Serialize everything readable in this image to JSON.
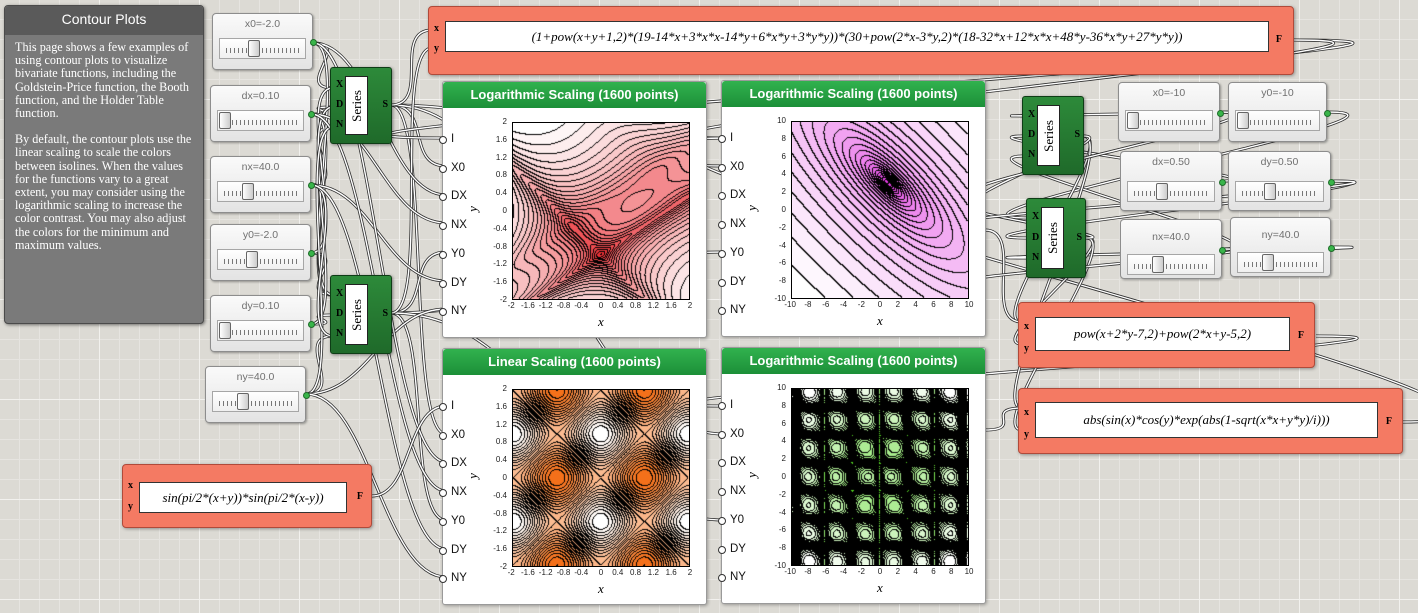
{
  "info": {
    "title": "Contour Plots",
    "paragraphs": [
      "This page shows a few examples of using contour plots to visualize bivariate functions, including the Goldstein-Price function, the Booth function, and the Holder Table function.",
      "By default, the contour plots use the linear scaling to scale the colors between isolines. When the values for the functions vary to a great extent, you may consider using the logarithmic scaling to increase the color contrast. You may also adjust the colors for the minimum and maximum values."
    ]
  },
  "sliders": {
    "x0_a": "x0=-2.0",
    "dx_a": "dx=0.10",
    "nx_a": "nx=40.0",
    "y0_a": "y0=-2.0",
    "dy_a": "dy=0.10",
    "ny_a": "ny=40.0",
    "x0_b": "x0=-10",
    "y0_b": "y0=-10",
    "dx_b": "dx=0.50",
    "dy_b": "dy=0.50",
    "nx_b": "nx=40.0",
    "ny_b": "ny=40.0",
    "levels": {
      "x0_a": 0.35,
      "dx_a": 0.0,
      "nx_a": 0.3,
      "y0_a": 0.35,
      "dy_a": 0.0,
      "ny_a": 0.3,
      "x0_b": 0.0,
      "y0_b": 0.0,
      "dx_b": 0.35,
      "dy_b": 0.35,
      "nx_b": 0.3,
      "ny_b": 0.3
    }
  },
  "series": {
    "label": "Series",
    "in_x": "X",
    "in_d": "D",
    "in_n": "N",
    "out": "S"
  },
  "functions": {
    "in_x": "x",
    "in_y": "y",
    "out": "F",
    "goldstein": "(1+pow(x+y+1,2)*(19-14*x+3*x*x-14*y+6*x*y+3*y*y))*(30+pow(2*x-3*y,2)*(18-32*x+12*x*x+48*y-36*x*y+27*y*y))",
    "booth": "pow(x+2*y-7,2)+pow(2*x+y-5,2)",
    "holder": "abs(sin(x)*cos(y)*exp(abs(1-sqrt(x*x+y*y)/i)))",
    "sine": "sin(pi/2*(x+y))*sin(pi/2*(x-y))"
  },
  "plot_ports": [
    "I",
    "X0",
    "DX",
    "NX",
    "Y0",
    "DY",
    "NY"
  ],
  "axis": {
    "x": "x",
    "y": "y"
  },
  "plots": {
    "goldstein": {
      "title": "Logarithmic Scaling (1600 points)",
      "xticks": [
        "-2",
        "-1.6",
        "-1.2",
        "-0.8",
        "-0.4",
        "0",
        "0.4",
        "0.8",
        "1.2",
        "1.6",
        "2"
      ],
      "yticks": [
        "2",
        "1.6",
        "1.2",
        "0.8",
        "0.4",
        "0",
        "-0.4",
        "-0.8",
        "-1.2",
        "-1.6",
        "-2"
      ]
    },
    "booth": {
      "title": "Logarithmic Scaling (1600 points)",
      "xticks": [
        "-10",
        "-8",
        "-6",
        "-4",
        "-2",
        "0",
        "2",
        "4",
        "6",
        "8",
        "10"
      ],
      "yticks": [
        "10",
        "8",
        "6",
        "4",
        "2",
        "0",
        "-2",
        "-4",
        "-6",
        "-8",
        "-10"
      ]
    },
    "sine": {
      "title": "Linear Scaling (1600 points)",
      "xticks": [
        "-2",
        "-1.6",
        "-1.2",
        "-0.8",
        "-0.4",
        "0",
        "0.4",
        "0.8",
        "1.2",
        "1.6",
        "2"
      ],
      "yticks": [
        "2",
        "1.6",
        "1.2",
        "0.8",
        "0.4",
        "0",
        "-0.4",
        "-0.8",
        "-1.2",
        "-1.6",
        "-2"
      ]
    },
    "holder": {
      "title": "Logarithmic Scaling (1600 points)",
      "xticks": [
        "-10",
        "-8",
        "-6",
        "-4",
        "-2",
        "0",
        "2",
        "4",
        "6",
        "8",
        "10"
      ],
      "yticks": [
        "10",
        "8",
        "6",
        "4",
        "2",
        "0",
        "-2",
        "-4",
        "-6",
        "-8",
        "-10"
      ]
    }
  },
  "colors": {
    "goldstein": "#e8262c",
    "booth": "#e034e0",
    "sine": "#f36a10",
    "holder": "#4cd416"
  }
}
